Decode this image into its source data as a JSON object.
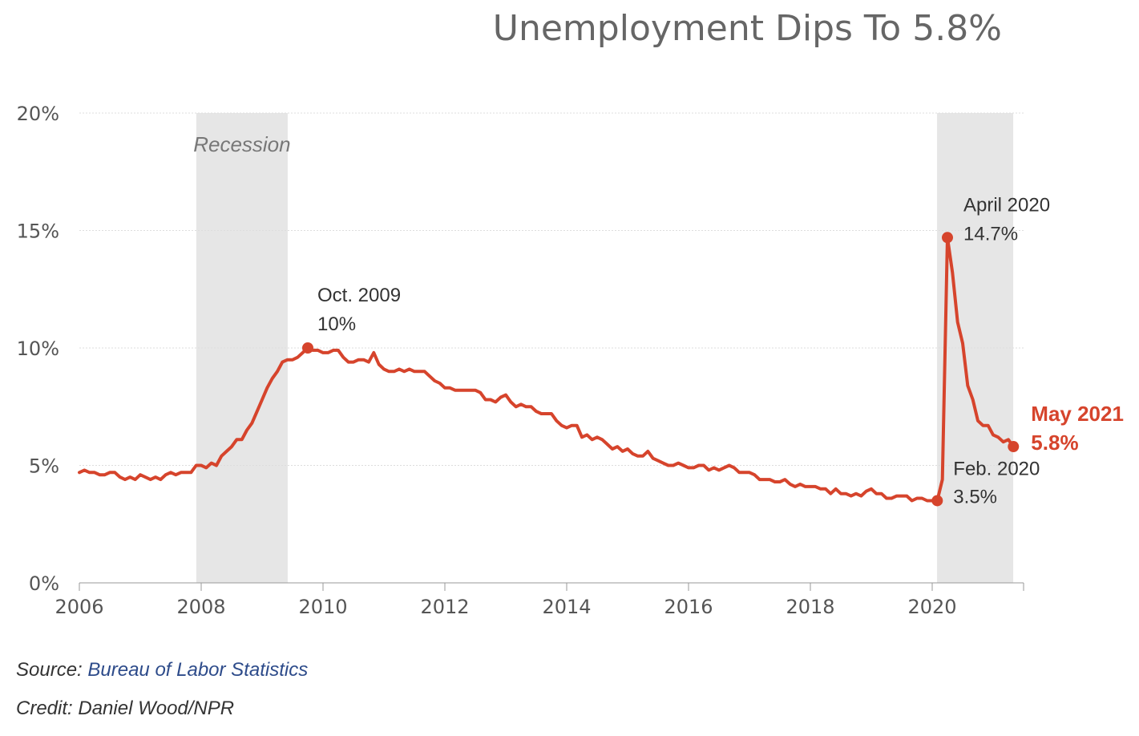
{
  "chart_data": {
    "type": "line",
    "title": "Unemployment Dips To 5.8%",
    "x_range": [
      2006,
      2021.5
    ],
    "ylim": [
      0,
      20
    ],
    "y_ticks": [
      "0%",
      "5%",
      "10%",
      "15%",
      "20%"
    ],
    "x_ticks": [
      "2006",
      "2008",
      "2010",
      "2012",
      "2014",
      "2016",
      "2018",
      "2020"
    ],
    "grid": "horizontal",
    "line_color": "#d6442c",
    "shade_color": "#e6e6e6",
    "recessions": [
      {
        "label": "Recession",
        "start": 2007.92,
        "end": 2009.42
      },
      {
        "label": "",
        "start": 2020.08,
        "end": 2021.33
      }
    ],
    "series": [
      {
        "color": "#d6442c",
        "points": [
          [
            2006.0,
            4.7
          ],
          [
            2006.083,
            4.8
          ],
          [
            2006.167,
            4.7
          ],
          [
            2006.25,
            4.7
          ],
          [
            2006.333,
            4.6
          ],
          [
            2006.417,
            4.6
          ],
          [
            2006.5,
            4.7
          ],
          [
            2006.583,
            4.7
          ],
          [
            2006.667,
            4.5
          ],
          [
            2006.75,
            4.4
          ],
          [
            2006.833,
            4.5
          ],
          [
            2006.917,
            4.4
          ],
          [
            2007.0,
            4.6
          ],
          [
            2007.083,
            4.5
          ],
          [
            2007.167,
            4.4
          ],
          [
            2007.25,
            4.5
          ],
          [
            2007.333,
            4.4
          ],
          [
            2007.417,
            4.6
          ],
          [
            2007.5,
            4.7
          ],
          [
            2007.583,
            4.6
          ],
          [
            2007.667,
            4.7
          ],
          [
            2007.75,
            4.7
          ],
          [
            2007.833,
            4.7
          ],
          [
            2007.917,
            5.0
          ],
          [
            2008.0,
            5.0
          ],
          [
            2008.083,
            4.9
          ],
          [
            2008.167,
            5.1
          ],
          [
            2008.25,
            5.0
          ],
          [
            2008.333,
            5.4
          ],
          [
            2008.417,
            5.6
          ],
          [
            2008.5,
            5.8
          ],
          [
            2008.583,
            6.1
          ],
          [
            2008.667,
            6.1
          ],
          [
            2008.75,
            6.5
          ],
          [
            2008.833,
            6.8
          ],
          [
            2008.917,
            7.3
          ],
          [
            2009.0,
            7.8
          ],
          [
            2009.083,
            8.3
          ],
          [
            2009.167,
            8.7
          ],
          [
            2009.25,
            9.0
          ],
          [
            2009.333,
            9.4
          ],
          [
            2009.417,
            9.5
          ],
          [
            2009.5,
            9.5
          ],
          [
            2009.583,
            9.6
          ],
          [
            2009.667,
            9.8
          ],
          [
            2009.75,
            10.0
          ],
          [
            2009.833,
            9.9
          ],
          [
            2009.917,
            9.9
          ],
          [
            2010.0,
            9.8
          ],
          [
            2010.083,
            9.8
          ],
          [
            2010.167,
            9.9
          ],
          [
            2010.25,
            9.9
          ],
          [
            2010.333,
            9.6
          ],
          [
            2010.417,
            9.4
          ],
          [
            2010.5,
            9.4
          ],
          [
            2010.583,
            9.5
          ],
          [
            2010.667,
            9.5
          ],
          [
            2010.75,
            9.4
          ],
          [
            2010.833,
            9.8
          ],
          [
            2010.917,
            9.3
          ],
          [
            2011.0,
            9.1
          ],
          [
            2011.083,
            9.0
          ],
          [
            2011.167,
            9.0
          ],
          [
            2011.25,
            9.1
          ],
          [
            2011.333,
            9.0
          ],
          [
            2011.417,
            9.1
          ],
          [
            2011.5,
            9.0
          ],
          [
            2011.583,
            9.0
          ],
          [
            2011.667,
            9.0
          ],
          [
            2011.75,
            8.8
          ],
          [
            2011.833,
            8.6
          ],
          [
            2011.917,
            8.5
          ],
          [
            2012.0,
            8.3
          ],
          [
            2012.083,
            8.3
          ],
          [
            2012.167,
            8.2
          ],
          [
            2012.25,
            8.2
          ],
          [
            2012.333,
            8.2
          ],
          [
            2012.417,
            8.2
          ],
          [
            2012.5,
            8.2
          ],
          [
            2012.583,
            8.1
          ],
          [
            2012.667,
            7.8
          ],
          [
            2012.75,
            7.8
          ],
          [
            2012.833,
            7.7
          ],
          [
            2012.917,
            7.9
          ],
          [
            2013.0,
            8.0
          ],
          [
            2013.083,
            7.7
          ],
          [
            2013.167,
            7.5
          ],
          [
            2013.25,
            7.6
          ],
          [
            2013.333,
            7.5
          ],
          [
            2013.417,
            7.5
          ],
          [
            2013.5,
            7.3
          ],
          [
            2013.583,
            7.2
          ],
          [
            2013.667,
            7.2
          ],
          [
            2013.75,
            7.2
          ],
          [
            2013.833,
            6.9
          ],
          [
            2013.917,
            6.7
          ],
          [
            2014.0,
            6.6
          ],
          [
            2014.083,
            6.7
          ],
          [
            2014.167,
            6.7
          ],
          [
            2014.25,
            6.2
          ],
          [
            2014.333,
            6.3
          ],
          [
            2014.417,
            6.1
          ],
          [
            2014.5,
            6.2
          ],
          [
            2014.583,
            6.1
          ],
          [
            2014.667,
            5.9
          ],
          [
            2014.75,
            5.7
          ],
          [
            2014.833,
            5.8
          ],
          [
            2014.917,
            5.6
          ],
          [
            2015.0,
            5.7
          ],
          [
            2015.083,
            5.5
          ],
          [
            2015.167,
            5.4
          ],
          [
            2015.25,
            5.4
          ],
          [
            2015.333,
            5.6
          ],
          [
            2015.417,
            5.3
          ],
          [
            2015.5,
            5.2
          ],
          [
            2015.583,
            5.1
          ],
          [
            2015.667,
            5.0
          ],
          [
            2015.75,
            5.0
          ],
          [
            2015.833,
            5.1
          ],
          [
            2015.917,
            5.0
          ],
          [
            2016.0,
            4.9
          ],
          [
            2016.083,
            4.9
          ],
          [
            2016.167,
            5.0
          ],
          [
            2016.25,
            5.0
          ],
          [
            2016.333,
            4.8
          ],
          [
            2016.417,
            4.9
          ],
          [
            2016.5,
            4.8
          ],
          [
            2016.583,
            4.9
          ],
          [
            2016.667,
            5.0
          ],
          [
            2016.75,
            4.9
          ],
          [
            2016.833,
            4.7
          ],
          [
            2016.917,
            4.7
          ],
          [
            2017.0,
            4.7
          ],
          [
            2017.083,
            4.6
          ],
          [
            2017.167,
            4.4
          ],
          [
            2017.25,
            4.4
          ],
          [
            2017.333,
            4.4
          ],
          [
            2017.417,
            4.3
          ],
          [
            2017.5,
            4.3
          ],
          [
            2017.583,
            4.4
          ],
          [
            2017.667,
            4.2
          ],
          [
            2017.75,
            4.1
          ],
          [
            2017.833,
            4.2
          ],
          [
            2017.917,
            4.1
          ],
          [
            2018.0,
            4.1
          ],
          [
            2018.083,
            4.1
          ],
          [
            2018.167,
            4.0
          ],
          [
            2018.25,
            4.0
          ],
          [
            2018.333,
            3.8
          ],
          [
            2018.417,
            4.0
          ],
          [
            2018.5,
            3.8
          ],
          [
            2018.583,
            3.8
          ],
          [
            2018.667,
            3.7
          ],
          [
            2018.75,
            3.8
          ],
          [
            2018.833,
            3.7
          ],
          [
            2018.917,
            3.9
          ],
          [
            2019.0,
            4.0
          ],
          [
            2019.083,
            3.8
          ],
          [
            2019.167,
            3.8
          ],
          [
            2019.25,
            3.6
          ],
          [
            2019.333,
            3.6
          ],
          [
            2019.417,
            3.7
          ],
          [
            2019.5,
            3.7
          ],
          [
            2019.583,
            3.7
          ],
          [
            2019.667,
            3.5
          ],
          [
            2019.75,
            3.6
          ],
          [
            2019.833,
            3.6
          ],
          [
            2019.917,
            3.5
          ],
          [
            2020.0,
            3.5
          ],
          [
            2020.083,
            3.5
          ],
          [
            2020.167,
            4.4
          ],
          [
            2020.25,
            14.7
          ],
          [
            2020.333,
            13.2
          ],
          [
            2020.417,
            11.1
          ],
          [
            2020.5,
            10.2
          ],
          [
            2020.583,
            8.4
          ],
          [
            2020.667,
            7.8
          ],
          [
            2020.75,
            6.9
          ],
          [
            2020.833,
            6.7
          ],
          [
            2020.917,
            6.7
          ],
          [
            2021.0,
            6.3
          ],
          [
            2021.083,
            6.2
          ],
          [
            2021.167,
            6.0
          ],
          [
            2021.25,
            6.1
          ],
          [
            2021.333,
            5.8
          ]
        ]
      }
    ],
    "annotations": [
      {
        "x": 2009.75,
        "y": 10.0,
        "line1": "Oct. 2009",
        "line2": "10%",
        "style": "normal"
      },
      {
        "x": 2020.25,
        "y": 14.7,
        "line1": "April 2020",
        "line2": "14.7%",
        "style": "normal"
      },
      {
        "x": 2020.083,
        "y": 3.5,
        "line1": "Feb. 2020",
        "line2": "3.5%",
        "style": "normal"
      },
      {
        "x": 2021.333,
        "y": 5.8,
        "line1": "May 2021",
        "line2": "5.8%",
        "style": "highlight"
      }
    ]
  },
  "footer": {
    "source_prefix": "Source: ",
    "source_link": "Bureau of Labor Statistics",
    "credit": "Credit: Daniel Wood/NPR"
  }
}
